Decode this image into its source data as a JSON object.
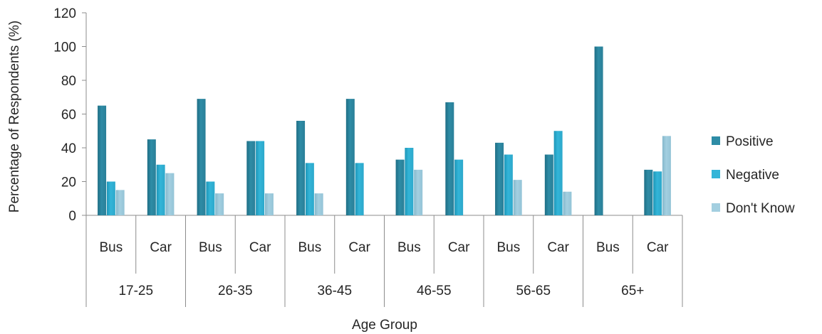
{
  "chart_data": {
    "type": "bar",
    "xlabel": "Age Group",
    "ylabel": "Percentage of Respondents (%)",
    "ylim": [
      0,
      120
    ],
    "yticks": [
      0,
      20,
      40,
      60,
      80,
      100,
      120
    ],
    "grid": false,
    "legend_position": "right",
    "groups": [
      {
        "label": "17-25",
        "categories": [
          "Bus",
          "Car"
        ]
      },
      {
        "label": "26-35",
        "categories": [
          "Bus",
          "Car"
        ]
      },
      {
        "label": "36-45",
        "categories": [
          "Bus",
          "Car"
        ]
      },
      {
        "label": "46-55",
        "categories": [
          "Bus",
          "Car"
        ]
      },
      {
        "label": "56-65",
        "categories": [
          "Bus",
          "Car"
        ]
      },
      {
        "label": "65+",
        "categories": [
          "Bus",
          "Car"
        ]
      }
    ],
    "series": [
      {
        "name": "Positive",
        "color": "#2E8CA6",
        "values": [
          65,
          45,
          69,
          44,
          56,
          69,
          33,
          67,
          43,
          36,
          100,
          27
        ]
      },
      {
        "name": "Negative",
        "color": "#33B5D8",
        "values": [
          20,
          30,
          20,
          44,
          31,
          31,
          40,
          33,
          36,
          50,
          0,
          26
        ]
      },
      {
        "name": "Don't Know",
        "color": "#A3CFE0",
        "values": [
          15,
          25,
          13,
          13,
          13,
          0,
          27,
          0,
          21,
          14,
          0,
          47
        ]
      }
    ]
  }
}
